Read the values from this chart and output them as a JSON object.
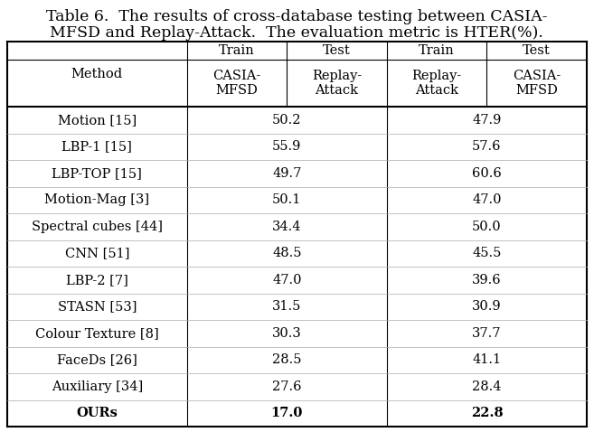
{
  "title_line1": "Table 6.  The results of cross-database testing between CASIA-",
  "title_line2": "MFSD and Replay-Attack.  The evaluation metric is HTER(%).",
  "col_header_row1": [
    "Train",
    "Test",
    "Train",
    "Test"
  ],
  "col_header_row2": [
    "CASIA-\nMFSD",
    "Replay-\nAttack",
    "Replay-\nAttack",
    "CASIA-\nMFSD"
  ],
  "rows": [
    [
      "Motion [15]",
      "50.2",
      "47.9"
    ],
    [
      "LBP-1 [15]",
      "55.9",
      "57.6"
    ],
    [
      "LBP-TOP [15]",
      "49.7",
      "60.6"
    ],
    [
      "Motion-Mag [3]",
      "50.1",
      "47.0"
    ],
    [
      "Spectral cubes [44]",
      "34.4",
      "50.0"
    ],
    [
      "CNN [51]",
      "48.5",
      "45.5"
    ],
    [
      "LBP-2 [7]",
      "47.0",
      "39.6"
    ],
    [
      "STASN [53]",
      "31.5",
      "30.9"
    ],
    [
      "Colour Texture [8]",
      "30.3",
      "37.7"
    ],
    [
      "FaceDs [26]",
      "28.5",
      "41.1"
    ],
    [
      "Auxiliary [34]",
      "27.6",
      "28.4"
    ],
    [
      "OURs",
      "17.0",
      "22.8"
    ]
  ],
  "last_row_bold": true,
  "background_color": "#ffffff",
  "text_color": "#000000",
  "font_size": 10.5,
  "title_font_size": 12.5
}
